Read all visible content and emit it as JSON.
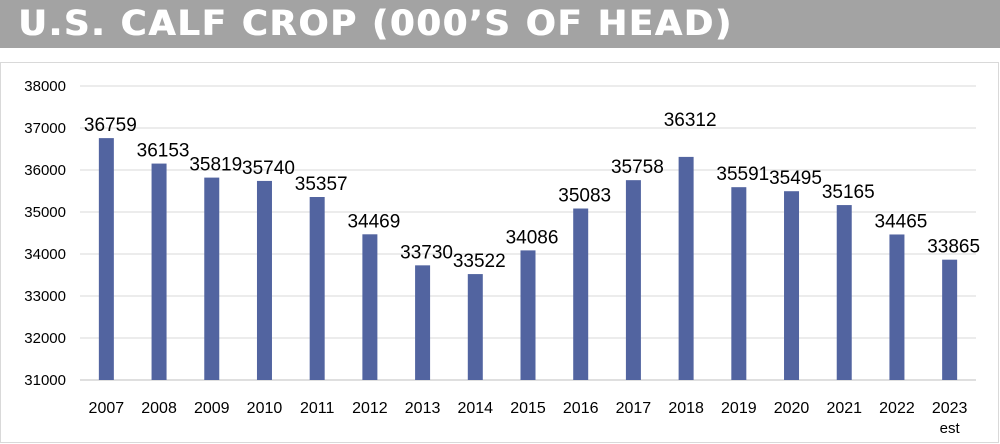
{
  "title": "U.S. CALF CROP (000’S OF HEAD)",
  "colors": {
    "title_bar": "#a3a3a3",
    "bar": "#5264a0",
    "gridline": "#d9d9d9"
  },
  "chart_data": {
    "type": "bar",
    "categories": [
      "2007",
      "2008",
      "2009",
      "2010",
      "2011",
      "2012",
      "2013",
      "2014",
      "2015",
      "2016",
      "2017",
      "2018",
      "2019",
      "2020",
      "2021",
      "2022",
      "2023"
    ],
    "category_sublabels": {
      "2023": "est"
    },
    "values": [
      36759,
      36153,
      35819,
      35740,
      35357,
      34469,
      33730,
      33522,
      34086,
      35083,
      35758,
      36312,
      35591,
      35495,
      35165,
      34465,
      33865
    ],
    "data_labels": [
      "36759",
      "36153",
      "35819",
      "35740",
      "35357",
      "34469",
      "33730",
      "33522",
      "34086",
      "35083",
      "35758",
      "36312",
      "35591",
      "35495",
      "35165",
      "34465",
      "33865"
    ],
    "ylim": [
      31000,
      38000
    ],
    "yticks": [
      "31000",
      "32000",
      "33000",
      "34000",
      "35000",
      "36000",
      "37000",
      "38000"
    ],
    "grid": true,
    "legend": "none"
  }
}
